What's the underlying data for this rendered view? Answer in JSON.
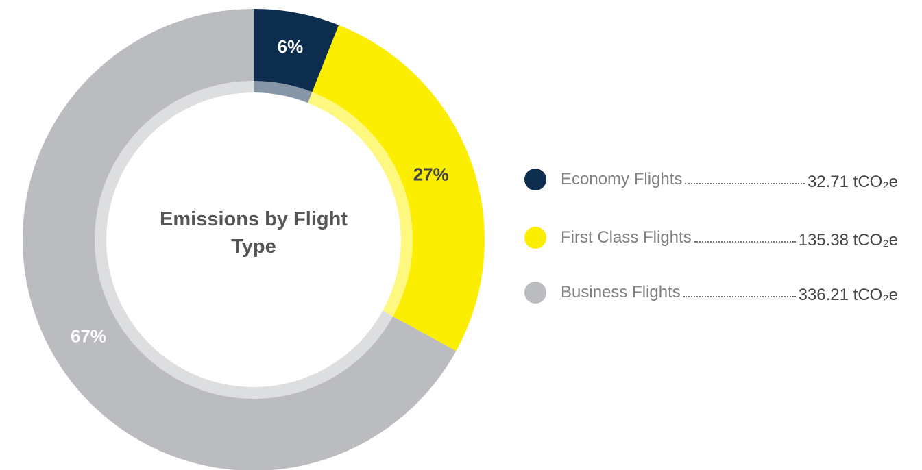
{
  "chart_data": {
    "type": "donut",
    "title": "Emissions by Flight Type",
    "categories": [
      "Economy Flights",
      "First Class Flights",
      "Business Flights"
    ],
    "values": [
      6,
      27,
      67
    ],
    "value_labels": [
      "6%",
      "27%",
      "67%"
    ],
    "colors": [
      "#0c2d4e",
      "#fcee00",
      "#bbbcbf"
    ],
    "legend_values": [
      "32.71 tCO₂e",
      "135.38 tCO₂e",
      "336.21 tCO₂e"
    ],
    "legend": "right"
  }
}
